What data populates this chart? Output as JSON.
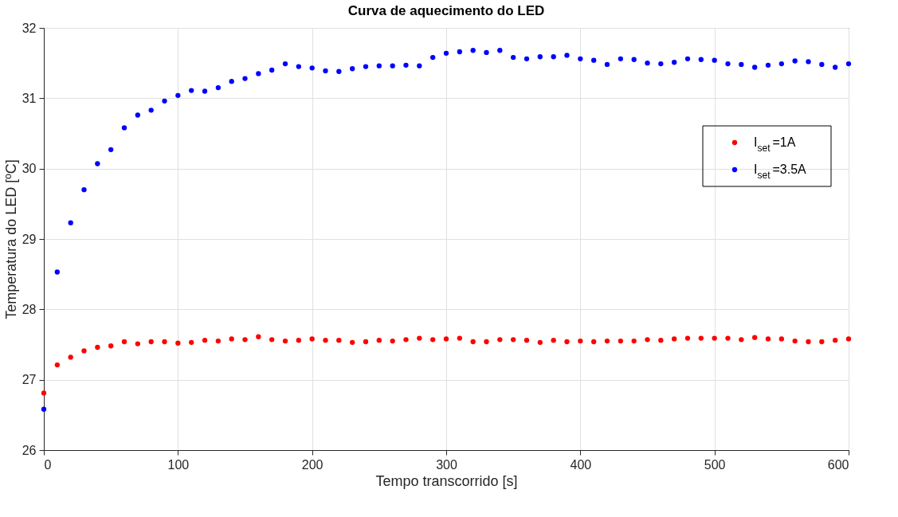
{
  "chart_data": {
    "type": "scatter",
    "title": "Curva de aquecimento do LED",
    "xlabel": "Tempo transcorrido [s]",
    "ylabel": "Temperatura do LED [ºC]",
    "x": [
      0,
      10,
      20,
      30,
      40,
      50,
      60,
      70,
      80,
      90,
      100,
      110,
      120,
      130,
      140,
      150,
      160,
      170,
      180,
      190,
      200,
      210,
      220,
      230,
      240,
      250,
      260,
      270,
      280,
      290,
      300,
      310,
      320,
      330,
      340,
      350,
      360,
      370,
      380,
      390,
      400,
      410,
      420,
      430,
      440,
      450,
      460,
      470,
      480,
      490,
      500,
      510,
      520,
      530,
      540,
      550,
      560,
      570,
      580,
      590,
      600
    ],
    "series": [
      {
        "name": "I$_{set}$=1A",
        "color": "#ff0000",
        "values": [
          26.81,
          27.21,
          27.32,
          27.41,
          27.46,
          27.48,
          27.54,
          27.51,
          27.54,
          27.54,
          27.52,
          27.53,
          27.56,
          27.55,
          27.58,
          27.57,
          27.61,
          27.57,
          27.55,
          27.56,
          27.58,
          27.56,
          27.56,
          27.53,
          27.54,
          27.56,
          27.55,
          27.57,
          27.59,
          27.57,
          27.58,
          27.59,
          27.54,
          27.54,
          27.57,
          27.57,
          27.56,
          27.53,
          27.56,
          27.54,
          27.55,
          27.54,
          27.55,
          27.55,
          27.55,
          27.57,
          27.56,
          27.58,
          27.59,
          27.59,
          27.59,
          27.59,
          27.57,
          27.6,
          27.58,
          27.58,
          27.55,
          27.54,
          27.54,
          27.56,
          27.58
        ]
      },
      {
        "name": "I$_{set}$=3.5A",
        "color": "#0000ff",
        "values": [
          26.58,
          28.53,
          29.23,
          29.7,
          30.07,
          30.27,
          30.58,
          30.76,
          30.83,
          30.96,
          31.04,
          31.11,
          31.1,
          31.15,
          31.24,
          31.28,
          31.35,
          31.4,
          31.49,
          31.45,
          31.43,
          31.39,
          31.38,
          31.42,
          31.45,
          31.46,
          31.46,
          31.47,
          31.46,
          31.58,
          31.64,
          31.66,
          31.68,
          31.65,
          31.68,
          31.58,
          31.56,
          31.59,
          31.59,
          31.61,
          31.56,
          31.54,
          31.48,
          31.56,
          31.55,
          31.5,
          31.49,
          31.51,
          31.56,
          31.55,
          31.54,
          31.49,
          31.48,
          31.44,
          31.47,
          31.49,
          31.53,
          31.52,
          31.48,
          31.44,
          31.49
        ]
      }
    ],
    "xlim": [
      0,
      600
    ],
    "xticks": [
      0,
      100,
      200,
      300,
      400,
      500,
      600
    ],
    "ylim": [
      26,
      32
    ],
    "yticks": [
      26,
      27,
      28,
      29,
      30,
      31,
      32
    ],
    "grid": true,
    "legend": "right",
    "marker": "circle"
  }
}
